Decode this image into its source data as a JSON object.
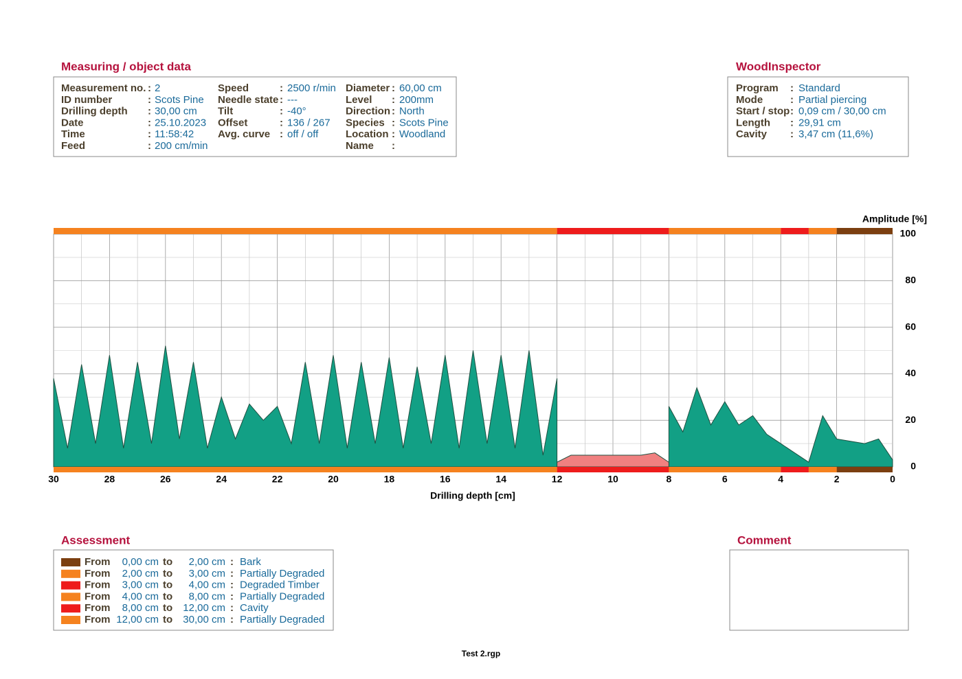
{
  "separator": ":",
  "measuring": {
    "title": "Measuring / object data",
    "columns": [
      [
        {
          "label": "Measurement no.",
          "value": "2"
        },
        {
          "label": "ID number",
          "value": "Scots Pine"
        },
        {
          "label": "Drilling depth",
          "value": "30,00 cm"
        },
        {
          "label": "Date",
          "value": "25.10.2023"
        },
        {
          "label": "Time",
          "value": "11:58:42"
        },
        {
          "label": "Feed",
          "value": "200 cm/min"
        }
      ],
      [
        {
          "label": "Speed",
          "value": "2500 r/min"
        },
        {
          "label": "Needle state",
          "value": "---"
        },
        {
          "label": "Tilt",
          "value": "-40°"
        },
        {
          "label": "Offset",
          "value": "136 / 267"
        },
        {
          "label": "Avg. curve",
          "value": "off / off"
        }
      ],
      [
        {
          "label": "Diameter",
          "value": "60,00 cm"
        },
        {
          "label": "Level",
          "value": "200mm"
        },
        {
          "label": "Direction",
          "value": "North"
        },
        {
          "label": "Species",
          "value": "Scots Pine"
        },
        {
          "label": "Location",
          "value": "Woodland"
        },
        {
          "label": "Name"
        }
      ]
    ]
  },
  "wood_inspector": {
    "title": "WoodInspector",
    "rows": [
      {
        "label": "Program",
        "value": "Standard"
      },
      {
        "label": "Mode",
        "value": "Partial piercing"
      },
      {
        "label": "Start / stop",
        "value": "0,09 cm / 30,00 cm"
      },
      {
        "label": "Length",
        "value": "29,91 cm"
      },
      {
        "label": "Cavity",
        "value": "3,47 cm (11,6%)"
      }
    ]
  },
  "chart_data": {
    "type": "area",
    "y_label": "Amplitude [%]",
    "x_label": "Drilling depth [cm]",
    "xlim": [
      30,
      0
    ],
    "ylim": [
      0,
      100
    ],
    "xticks": [
      30,
      28,
      26,
      24,
      22,
      20,
      18,
      16,
      14,
      12,
      10,
      8,
      6,
      4,
      2,
      0
    ],
    "yticks": [
      0,
      20,
      40,
      60,
      80,
      100
    ],
    "grid": true,
    "x": [
      30,
      29.5,
      29,
      28.5,
      28,
      27.5,
      27,
      26.5,
      26,
      25.5,
      25,
      24.5,
      24,
      23.5,
      23,
      22.5,
      22,
      21.5,
      21,
      20.5,
      20,
      19.5,
      19,
      18.5,
      18,
      17.5,
      17,
      16.5,
      16,
      15.5,
      15,
      14.5,
      14,
      13.5,
      13,
      12.5,
      12,
      11.5,
      11,
      10.5,
      10,
      9.5,
      9,
      8.5,
      8,
      7.5,
      7,
      6.5,
      6,
      5.5,
      5,
      4.5,
      4,
      3.5,
      3,
      2.5,
      2,
      1.5,
      1,
      0.5,
      0
    ],
    "series": [
      {
        "color": "#12a085",
        "values": [
          38,
          8,
          44,
          10,
          48,
          8,
          45,
          10,
          52,
          12,
          45,
          8,
          30,
          12,
          27,
          20,
          26,
          10,
          45,
          10,
          48,
          8,
          45,
          10,
          47,
          8,
          43,
          10,
          48,
          8,
          50,
          10,
          48,
          8,
          50,
          5,
          38,
          null,
          null,
          null,
          null,
          null,
          null,
          null,
          26,
          15,
          34,
          18,
          28,
          18,
          22,
          14,
          10,
          6,
          2,
          22,
          12,
          11,
          10,
          12,
          3
        ]
      },
      {
        "color": "#f08080",
        "values": [
          null,
          null,
          null,
          null,
          null,
          null,
          null,
          null,
          null,
          null,
          null,
          null,
          null,
          null,
          null,
          null,
          null,
          null,
          null,
          null,
          null,
          null,
          null,
          null,
          null,
          null,
          null,
          null,
          null,
          null,
          null,
          null,
          null,
          null,
          null,
          null,
          2,
          5,
          5,
          5,
          5,
          5,
          5,
          6,
          2,
          null,
          null,
          null,
          null,
          null,
          null,
          null,
          null,
          null,
          null,
          null,
          null,
          null,
          null,
          null,
          null
        ]
      }
    ],
    "bands": [
      {
        "from": 0,
        "to": 2,
        "color": "#7b3f10"
      },
      {
        "from": 2,
        "to": 3,
        "color": "#f5821f"
      },
      {
        "from": 3,
        "to": 4,
        "color": "#ee1c1c"
      },
      {
        "from": 4,
        "to": 8,
        "color": "#f5821f"
      },
      {
        "from": 8,
        "to": 12,
        "color": "#ee1c1c"
      },
      {
        "from": 12,
        "to": 30,
        "color": "#f5821f"
      }
    ]
  },
  "assessment": {
    "title": "Assessment",
    "rows": [
      {
        "from_word": "From",
        "from": "0,00 cm",
        "to_word": "to",
        "to": "2,00 cm",
        "text": "Bark"
      },
      {
        "from_word": "From",
        "from": "2,00 cm",
        "to_word": "to",
        "to": "3,00 cm",
        "text": "Partially Degraded"
      },
      {
        "from_word": "From",
        "from": "3,00 cm",
        "to_word": "to",
        "to": "4,00 cm",
        "text": "Degraded Timber"
      },
      {
        "from_word": "From",
        "from": "4,00 cm",
        "to_word": "to",
        "to": "8,00 cm",
        "text": "Partially Degraded"
      },
      {
        "from_word": "From",
        "from": "8,00 cm",
        "to_word": "to",
        "to": "12,00 cm",
        "text": "Cavity"
      },
      {
        "from_word": "From",
        "from": "12,00 cm",
        "to_word": "to",
        "to": "30,00 cm",
        "text": "Partially Degraded"
      }
    ]
  },
  "comment": {
    "title": "Comment"
  },
  "footer": "Test 2.rgp"
}
